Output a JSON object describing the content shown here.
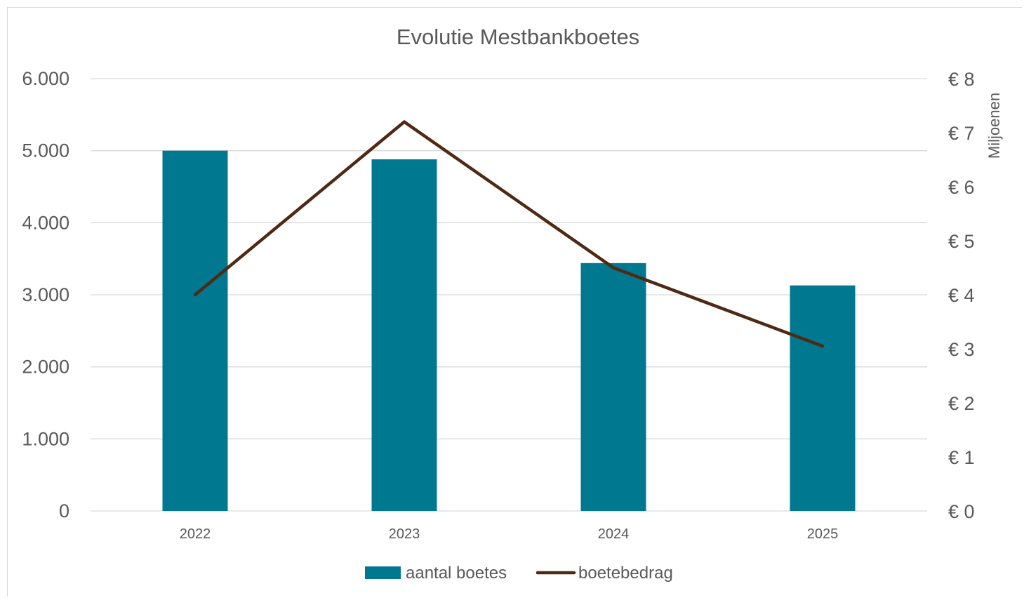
{
  "chart_data": {
    "type": "bar",
    "title": "Evolutie Mestbankboetes",
    "categories": [
      "2022",
      "2023",
      "2024",
      "2025"
    ],
    "series": [
      {
        "name": "aantal boetes",
        "type": "bar",
        "axis": "left",
        "color": "#00788F",
        "values": [
          5000,
          4880,
          3440,
          3130
        ]
      },
      {
        "name": "boetebedrag",
        "type": "line",
        "axis": "right",
        "color": "#4E2A14",
        "values": [
          4.0,
          7.2,
          4.5,
          3.05
        ]
      }
    ],
    "y_left": {
      "min": 0,
      "max": 6000,
      "ticks": [
        0,
        1000,
        2000,
        3000,
        4000,
        5000,
        6000
      ],
      "tick_labels": [
        "0",
        "1.000",
        "2.000",
        "3.000",
        "4.000",
        "5.000",
        "6.000"
      ]
    },
    "y_right": {
      "min": 0,
      "max": 8,
      "ticks": [
        0,
        1,
        2,
        3,
        4,
        5,
        6,
        7,
        8
      ],
      "tick_labels": [
        "€ 0",
        "€ 1",
        "€ 2",
        "€ 3",
        "€ 4",
        "€ 5",
        "€ 6",
        "€ 7",
        "€ 8"
      ],
      "unit_label": "Miljoenen"
    },
    "grid": true,
    "legend": "bottom",
    "gridline_color": "#d9d9d9"
  }
}
